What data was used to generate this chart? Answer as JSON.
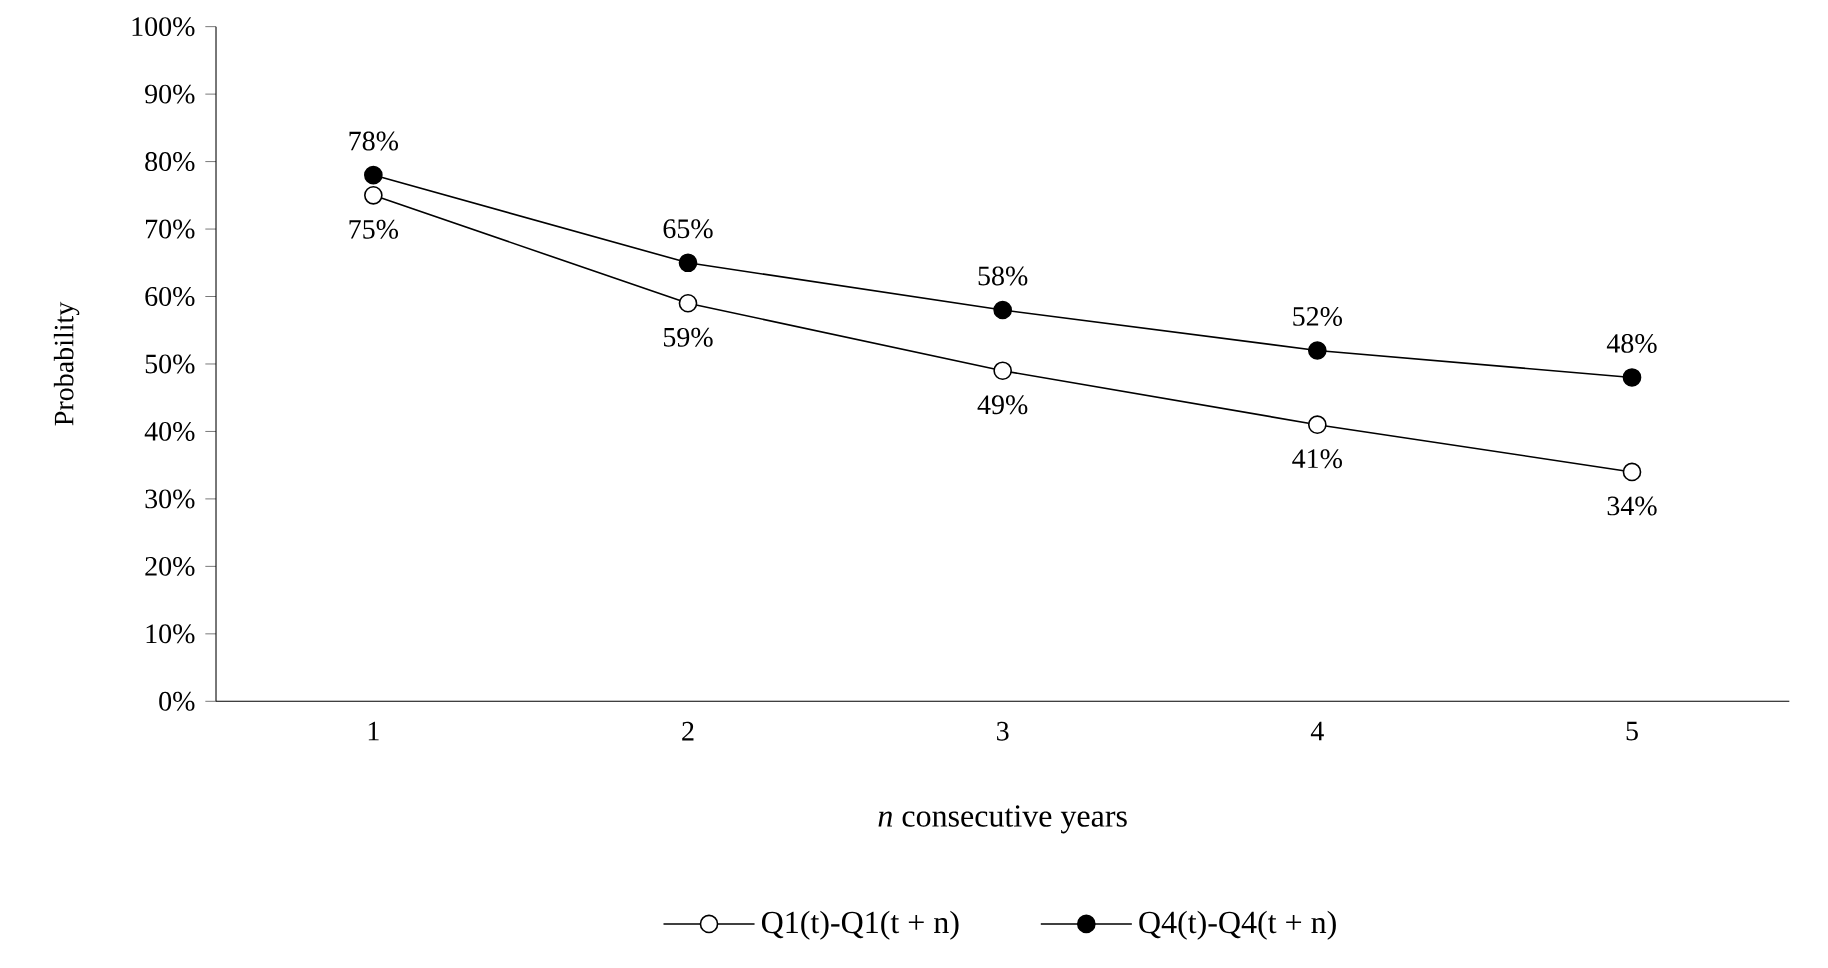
{
  "chart_data": {
    "type": "line",
    "xlabel": "*n* consecutive years",
    "ylabel": "Probability",
    "categories": [
      "1",
      "2",
      "3",
      "4",
      "5"
    ],
    "series": [
      {
        "name": "Q1(t)-Q1(t + n)",
        "color": "#000000",
        "values": [
          75,
          59,
          49,
          41,
          34
        ],
        "value_labels": [
          "75%",
          "59%",
          "49%",
          "41%",
          "34%"
        ]
      },
      {
        "name": "Q4(t)-Q4(t + n)",
        "color": "#000000",
        "values": [
          78,
          65,
          58,
          52,
          48
        ],
        "value_labels": [
          "78%",
          "65%",
          "58%",
          "52%",
          "48%"
        ]
      }
    ],
    "ylim": [
      0,
      100
    ],
    "yticks": [
      {
        "value": 0,
        "label": "0%"
      },
      {
        "value": 10,
        "label": "10%"
      },
      {
        "value": 20,
        "label": "20%"
      },
      {
        "value": 30,
        "label": "30%"
      },
      {
        "value": 40,
        "label": "40%"
      },
      {
        "value": 50,
        "label": "50%"
      },
      {
        "value": 60,
        "label": "60%"
      },
      {
        "value": 70,
        "label": "70%"
      },
      {
        "value": 80,
        "label": "80%"
      },
      {
        "value": 90,
        "label": "90%"
      },
      {
        "value": 100,
        "label": "100%"
      }
    ],
    "grid": false,
    "legend": "bottom",
    "marker": "circle",
    "line_style": "solid"
  }
}
